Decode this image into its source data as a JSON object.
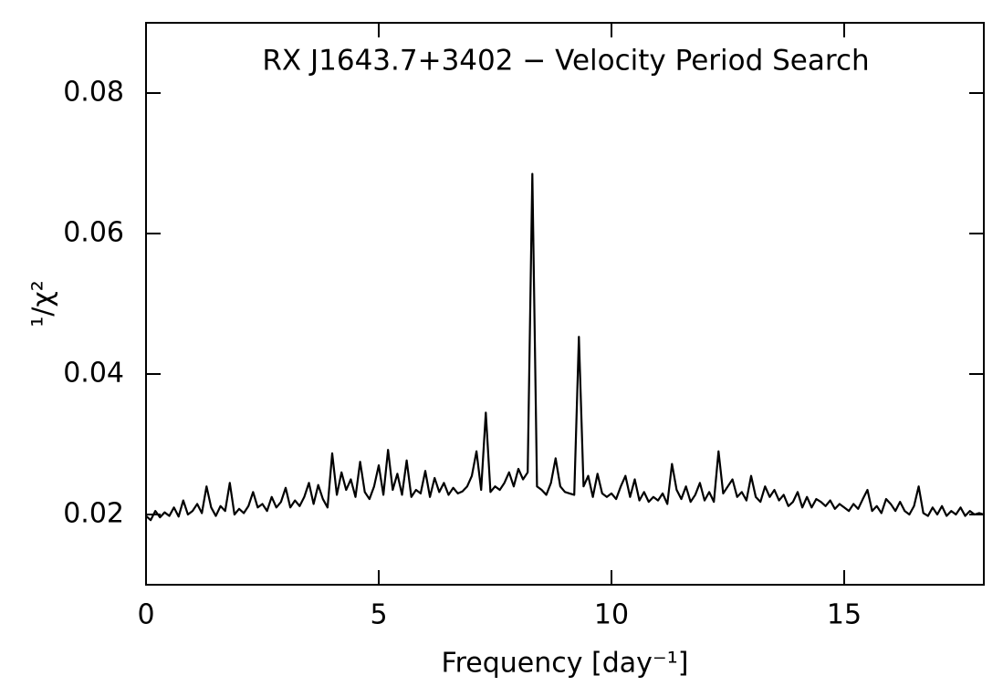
{
  "chart_data": {
    "type": "line",
    "title": "RX J1643.7+3402 − Velocity Period Search",
    "x_label": "Frequency [day⁻¹]",
    "y_label": "¹/χ²",
    "xlim": [
      0,
      18
    ],
    "ylim": [
      0.01,
      0.09
    ],
    "xticks": [
      0,
      5,
      10,
      15
    ],
    "yticks": [
      0.02,
      0.04,
      0.06,
      0.08
    ],
    "color": "#000000",
    "x": [
      0,
      0.1,
      0.2,
      0.3,
      0.4,
      0.5,
      0.6,
      0.7,
      0.8,
      0.9,
      1,
      1.1,
      1.2,
      1.3,
      1.4,
      1.5,
      1.6,
      1.7,
      1.8,
      1.9,
      2,
      2.1,
      2.2,
      2.3,
      2.4,
      2.5,
      2.6,
      2.7,
      2.8,
      2.9,
      3,
      3.1,
      3.2,
      3.3,
      3.4,
      3.5,
      3.6,
      3.7,
      3.8,
      3.9,
      4,
      4.1,
      4.2,
      4.3,
      4.4,
      4.5,
      4.6,
      4.7,
      4.8,
      4.9,
      5,
      5.1,
      5.2,
      5.3,
      5.4,
      5.5,
      5.6,
      5.7,
      5.8,
      5.9,
      6,
      6.1,
      6.2,
      6.3,
      6.4,
      6.5,
      6.6,
      6.7,
      6.8,
      6.9,
      7,
      7.1,
      7.2,
      7.3,
      7.4,
      7.5,
      7.6,
      7.7,
      7.8,
      7.9,
      8,
      8.1,
      8.2,
      8.3,
      8.4,
      8.5,
      8.6,
      8.7,
      8.8,
      8.9,
      9,
      9.1,
      9.2,
      9.3,
      9.4,
      9.5,
      9.6,
      9.7,
      9.8,
      9.9,
      10,
      10.1,
      10.2,
      10.3,
      10.4,
      10.5,
      10.6,
      10.7,
      10.8,
      10.9,
      11,
      11.1,
      11.2,
      11.3,
      11.4,
      11.5,
      11.6,
      11.7,
      11.8,
      11.9,
      12,
      12.1,
      12.2,
      12.3,
      12.4,
      12.5,
      12.6,
      12.7,
      12.8,
      12.9,
      13,
      13.1,
      13.2,
      13.3,
      13.4,
      13.5,
      13.6,
      13.7,
      13.8,
      13.9,
      14,
      14.1,
      14.2,
      14.3,
      14.4,
      14.5,
      14.6,
      14.7,
      14.8,
      14.9,
      15,
      15.1,
      15.2,
      15.3,
      15.4,
      15.5,
      15.6,
      15.7,
      15.8,
      15.9,
      16,
      16.1,
      16.2,
      16.3,
      16.4,
      16.5,
      16.6,
      16.7,
      16.8,
      16.9,
      17,
      17.1,
      17.2,
      17.3,
      17.4,
      17.5,
      17.6,
      17.7,
      17.8,
      17.9,
      18
    ],
    "values": [
      0.0198,
      0.0192,
      0.0205,
      0.0196,
      0.0203,
      0.0198,
      0.021,
      0.0197,
      0.022,
      0.02,
      0.0205,
      0.0215,
      0.0202,
      0.024,
      0.021,
      0.0198,
      0.0212,
      0.0205,
      0.0245,
      0.02,
      0.0208,
      0.0202,
      0.0212,
      0.0232,
      0.021,
      0.0215,
      0.0205,
      0.0225,
      0.021,
      0.0218,
      0.0238,
      0.021,
      0.022,
      0.0212,
      0.0225,
      0.0245,
      0.0215,
      0.0242,
      0.0222,
      0.021,
      0.0287,
      0.0228,
      0.026,
      0.0235,
      0.025,
      0.0225,
      0.0275,
      0.0232,
      0.0222,
      0.024,
      0.027,
      0.0228,
      0.0292,
      0.0235,
      0.0258,
      0.0228,
      0.0277,
      0.0225,
      0.0235,
      0.023,
      0.0262,
      0.0225,
      0.0252,
      0.0232,
      0.0245,
      0.0228,
      0.0238,
      0.023,
      0.0233,
      0.024,
      0.0255,
      0.029,
      0.0235,
      0.0345,
      0.0232,
      0.024,
      0.0235,
      0.0245,
      0.026,
      0.024,
      0.0265,
      0.025,
      0.026,
      0.0685,
      0.024,
      0.0235,
      0.0228,
      0.0245,
      0.028,
      0.024,
      0.0232,
      0.023,
      0.0228,
      0.0453,
      0.024,
      0.0255,
      0.0225,
      0.0258,
      0.023,
      0.0225,
      0.023,
      0.0222,
      0.024,
      0.0255,
      0.0225,
      0.025,
      0.022,
      0.0232,
      0.0218,
      0.0225,
      0.022,
      0.023,
      0.0215,
      0.0272,
      0.0235,
      0.0222,
      0.024,
      0.0218,
      0.0228,
      0.0245,
      0.022,
      0.0232,
      0.0218,
      0.029,
      0.023,
      0.024,
      0.025,
      0.0225,
      0.0232,
      0.022,
      0.0255,
      0.0225,
      0.0218,
      0.024,
      0.0225,
      0.0235,
      0.022,
      0.0228,
      0.0212,
      0.0218,
      0.0232,
      0.021,
      0.0225,
      0.021,
      0.0222,
      0.0218,
      0.0212,
      0.022,
      0.0208,
      0.0215,
      0.021,
      0.0205,
      0.0215,
      0.0208,
      0.0222,
      0.0235,
      0.0205,
      0.0212,
      0.0202,
      0.0222,
      0.0215,
      0.0205,
      0.0218,
      0.0205,
      0.02,
      0.0212,
      0.024,
      0.0202,
      0.0198,
      0.021,
      0.02,
      0.0212,
      0.0198,
      0.0205,
      0.02,
      0.021,
      0.0198,
      0.0205,
      0.02,
      0.0202,
      0.02
    ]
  }
}
